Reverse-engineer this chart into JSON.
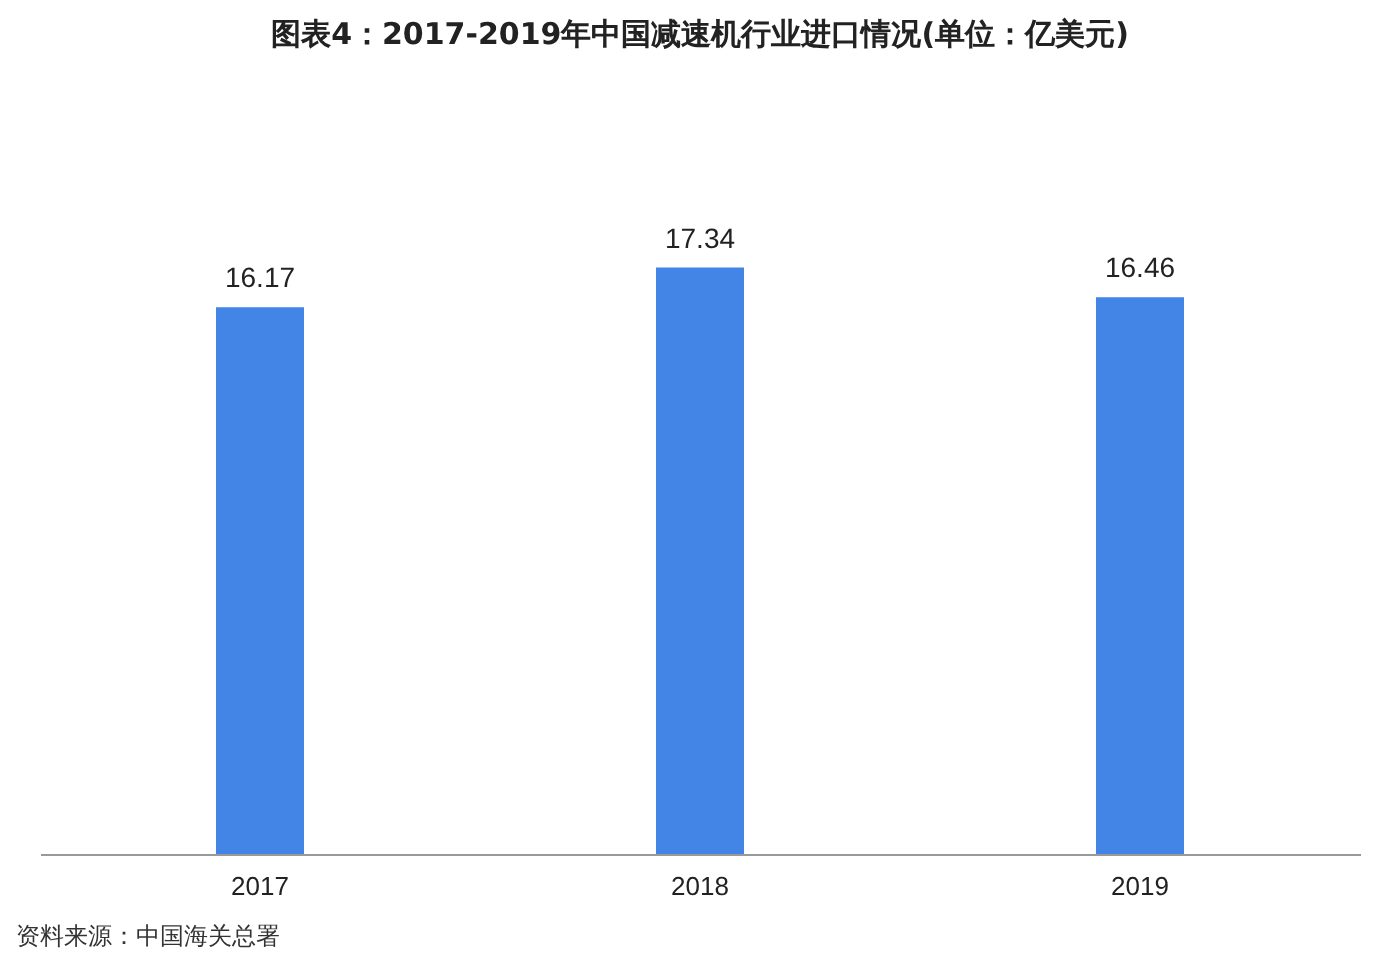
{
  "chart_data": {
    "type": "bar",
    "title": "图表4：2017-2019年中国减速机行业进口情况(单位：亿美元)",
    "categories": [
      "2017",
      "2018",
      "2019"
    ],
    "values": [
      16.17,
      17.34,
      16.46
    ],
    "color": "#4285e6",
    "data_labels": true,
    "grid": false,
    "annotations": [
      "资料来源：中国海关总署"
    ]
  }
}
